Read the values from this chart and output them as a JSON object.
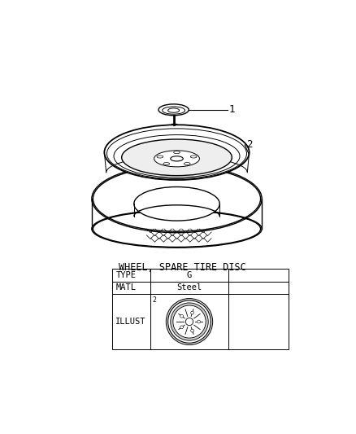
{
  "title": "WHEEL, SPARE TIRE DISC",
  "bg_color": "#ffffff",
  "table_title": "WHEEL, SPARE TIRE DISC",
  "type_label": "TYPE",
  "type_value": "G",
  "matl_label": "MATL",
  "matl_value": "Steel",
  "illust_label": "ILLUST",
  "part_labels": [
    "1",
    "2"
  ],
  "line_color": "#000000",
  "font_family": "monospace"
}
